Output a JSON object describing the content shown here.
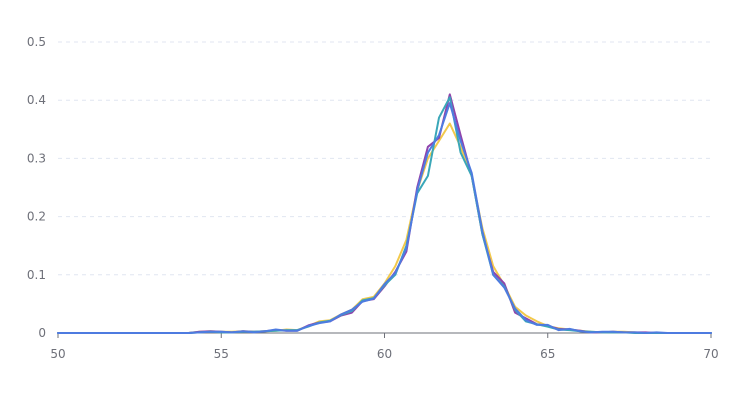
{
  "chart_data": {
    "type": "line",
    "title": "",
    "xlabel": "",
    "ylabel": "",
    "xlim": [
      50,
      70
    ],
    "ylim": [
      0,
      0.5
    ],
    "x_ticks": [
      "50",
      "55",
      "60",
      "65",
      "70"
    ],
    "y_ticks": [
      "0",
      "0.1",
      "0.2",
      "0.3",
      "0.4",
      "0.5"
    ],
    "grid": "horizontal-dashed",
    "legend": "none",
    "x": [
      50,
      50.33,
      50.67,
      51,
      51.33,
      51.67,
      52,
      52.33,
      52.67,
      53,
      53.33,
      53.67,
      54,
      54.33,
      54.67,
      55,
      55.33,
      55.67,
      56,
      56.33,
      56.67,
      57,
      57.33,
      57.67,
      58,
      58.33,
      58.67,
      59,
      59.33,
      59.67,
      60,
      60.33,
      60.67,
      61,
      61.33,
      61.67,
      62,
      62.33,
      62.67,
      63,
      63.33,
      63.67,
      64,
      64.33,
      64.67,
      65,
      65.33,
      65.67,
      66,
      66.33,
      66.67,
      67,
      67.33,
      67.67,
      68,
      68.33,
      68.67,
      69,
      69.33,
      69.67,
      70
    ],
    "series": [
      {
        "color": "#f2c94c",
        "values": [
          0,
          0,
          0,
          0,
          0,
          0,
          0,
          0,
          0,
          0,
          0,
          0,
          0,
          0.002,
          0.003,
          0.002,
          0.002,
          0.003,
          0.002,
          0.003,
          0.004,
          0.006,
          0.005,
          0.012,
          0.02,
          0.022,
          0.032,
          0.04,
          0.058,
          0.062,
          0.085,
          0.115,
          0.16,
          0.245,
          0.3,
          0.33,
          0.36,
          0.32,
          0.27,
          0.18,
          0.115,
          0.082,
          0.045,
          0.03,
          0.02,
          0.012,
          0.008,
          0.006,
          0.004,
          0.002,
          0.001,
          0.002,
          0.002,
          0.001,
          0,
          0,
          0,
          0,
          0,
          0,
          0
        ]
      },
      {
        "color": "#8e44ad",
        "values": [
          0,
          0,
          0,
          0,
          0,
          0,
          0,
          0,
          0,
          0,
          0,
          0,
          0,
          0.002,
          0.003,
          0.002,
          0.001,
          0.003,
          0.002,
          0.003,
          0.005,
          0.004,
          0.004,
          0.013,
          0.018,
          0.02,
          0.03,
          0.035,
          0.055,
          0.058,
          0.08,
          0.105,
          0.14,
          0.25,
          0.32,
          0.335,
          0.41,
          0.34,
          0.27,
          0.17,
          0.105,
          0.085,
          0.035,
          0.025,
          0.015,
          0.012,
          0.007,
          0.006,
          0.004,
          0.001,
          0.001,
          0.002,
          0.001,
          0.001,
          0.001,
          0,
          0,
          0,
          0,
          0,
          0
        ]
      },
      {
        "color": "#3aa7b8",
        "values": [
          0,
          0,
          0,
          0,
          0,
          0,
          0,
          0,
          0,
          0,
          0,
          0,
          0,
          0.001,
          0.002,
          0.001,
          0.001,
          0.002,
          0.002,
          0.003,
          0.004,
          0.005,
          0.005,
          0.011,
          0.018,
          0.021,
          0.031,
          0.038,
          0.056,
          0.06,
          0.082,
          0.1,
          0.15,
          0.24,
          0.27,
          0.37,
          0.405,
          0.31,
          0.27,
          0.17,
          0.1,
          0.08,
          0.04,
          0.02,
          0.015,
          0.011,
          0.006,
          0.005,
          0.003,
          0.002,
          0.001,
          0.001,
          0.001,
          0,
          0,
          0,
          0,
          0,
          0,
          0,
          0
        ]
      },
      {
        "color": "#4e7be0",
        "values": [
          0,
          0,
          0,
          0,
          0,
          0,
          0,
          0,
          0,
          0,
          0,
          0,
          0,
          0.001,
          0.002,
          0.002,
          0.001,
          0.003,
          0.001,
          0.003,
          0.006,
          0.004,
          0.004,
          0.012,
          0.017,
          0.02,
          0.032,
          0.04,
          0.054,
          0.059,
          0.084,
          0.103,
          0.145,
          0.245,
          0.31,
          0.34,
          0.395,
          0.33,
          0.275,
          0.175,
          0.1,
          0.078,
          0.042,
          0.022,
          0.014,
          0.014,
          0.005,
          0.007,
          0.003,
          0.001,
          0.002,
          0.002,
          0.001,
          0.001,
          0,
          0.001,
          0,
          0,
          0,
          0,
          0
        ]
      }
    ]
  }
}
